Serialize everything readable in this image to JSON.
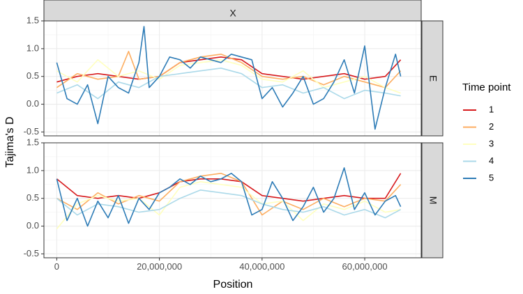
{
  "chart_data": {
    "type": "line",
    "xlabel": "Position",
    "ylabel": "Tajima's D",
    "xlim": [
      -2500000,
      71000000
    ],
    "ylim": [
      -0.57,
      1.5
    ],
    "x_ticks": [
      0,
      20000000,
      40000000,
      60000000
    ],
    "x_tick_labels": [
      "0",
      "20,000,000",
      "40,000,000",
      "60,000,000"
    ],
    "y_ticks": [
      -0.5,
      0.0,
      0.5,
      1.0,
      1.5
    ],
    "y_tick_labels": [
      "-0.5",
      "0.0",
      "0.5",
      "1.0",
      "1.5"
    ],
    "grid": true,
    "legend_position": "right",
    "facet_col_label": "X",
    "legend": {
      "title": "Time point",
      "entries": [
        {
          "label": "1",
          "color": "#d7191c"
        },
        {
          "label": "2",
          "color": "#fdae61"
        },
        {
          "label": "3",
          "color": "#ffffbf"
        },
        {
          "label": "4",
          "color": "#abd9e9"
        },
        {
          "label": "5",
          "color": "#2c7bb6"
        }
      ]
    },
    "panels": [
      {
        "label": "E",
        "series": [
          {
            "name": "1",
            "color": "#d7191c",
            "x": [
              0,
              4000000,
              8000000,
              12000000,
              16000000,
              20000000,
              24000000,
              28000000,
              32000000,
              36000000,
              40000000,
              44000000,
              48000000,
              52000000,
              56000000,
              60000000,
              64000000,
              67000000
            ],
            "y": [
              0.4,
              0.5,
              0.55,
              0.5,
              0.45,
              0.5,
              0.75,
              0.8,
              0.85,
              0.8,
              0.55,
              0.5,
              0.45,
              0.5,
              0.55,
              0.45,
              0.5,
              0.8
            ]
          },
          {
            "name": "2",
            "color": "#fdae61",
            "x": [
              0,
              4000000,
              8000000,
              12000000,
              14000000,
              16000000,
              20000000,
              24000000,
              28000000,
              32000000,
              36000000,
              40000000,
              44000000,
              48000000,
              52000000,
              56000000,
              60000000,
              64000000,
              67000000
            ],
            "y": [
              0.3,
              0.55,
              0.45,
              0.5,
              0.95,
              0.45,
              0.5,
              0.75,
              0.85,
              0.9,
              0.75,
              0.5,
              0.45,
              0.5,
              0.35,
              0.5,
              0.4,
              0.3,
              0.6
            ]
          },
          {
            "name": "3",
            "color": "#ffffbf",
            "x": [
              0,
              4000000,
              8000000,
              12000000,
              16000000,
              20000000,
              24000000,
              28000000,
              32000000,
              36000000,
              40000000,
              44000000,
              48000000,
              52000000,
              56000000,
              60000000,
              64000000,
              67000000
            ],
            "y": [
              0.6,
              0.4,
              0.8,
              0.5,
              0.6,
              0.45,
              0.7,
              0.75,
              0.8,
              0.7,
              0.45,
              0.4,
              0.6,
              0.3,
              0.4,
              0.5,
              0.3,
              0.2
            ]
          },
          {
            "name": "4",
            "color": "#abd9e9",
            "x": [
              0,
              4000000,
              8000000,
              12000000,
              16000000,
              20000000,
              24000000,
              28000000,
              32000000,
              36000000,
              40000000,
              44000000,
              48000000,
              52000000,
              56000000,
              60000000,
              64000000,
              67000000
            ],
            "y": [
              0.2,
              0.35,
              0.1,
              0.4,
              0.3,
              0.5,
              0.55,
              0.6,
              0.65,
              0.55,
              0.3,
              0.35,
              0.2,
              0.3,
              0.1,
              0.25,
              0.2,
              0.15
            ]
          },
          {
            "name": "5",
            "color": "#2c7bb6",
            "x": [
              0,
              2000000,
              4000000,
              6000000,
              8000000,
              10000000,
              12000000,
              14000000,
              16000000,
              17000000,
              18000000,
              20000000,
              22000000,
              24000000,
              26000000,
              28000000,
              30000000,
              32000000,
              34000000,
              36000000,
              38000000,
              40000000,
              42000000,
              44000000,
              46000000,
              48000000,
              50000000,
              52000000,
              54000000,
              56000000,
              58000000,
              60000000,
              62000000,
              64000000,
              66000000,
              67000000
            ],
            "y": [
              0.75,
              0.1,
              0.0,
              0.35,
              -0.35,
              0.5,
              0.3,
              0.2,
              0.75,
              1.4,
              0.3,
              0.5,
              0.85,
              0.8,
              0.65,
              0.85,
              0.8,
              0.75,
              0.9,
              0.85,
              0.8,
              0.1,
              0.3,
              -0.05,
              0.2,
              0.5,
              0.0,
              0.1,
              0.4,
              0.8,
              0.2,
              1.05,
              -0.45,
              0.3,
              0.9,
              0.5
            ]
          }
        ]
      },
      {
        "label": "M",
        "series": [
          {
            "name": "1",
            "color": "#d7191c",
            "x": [
              0,
              4000000,
              8000000,
              12000000,
              16000000,
              20000000,
              24000000,
              28000000,
              32000000,
              36000000,
              40000000,
              44000000,
              48000000,
              52000000,
              56000000,
              60000000,
              64000000,
              67000000
            ],
            "y": [
              0.85,
              0.55,
              0.5,
              0.55,
              0.5,
              0.6,
              0.8,
              0.85,
              0.85,
              0.8,
              0.55,
              0.5,
              0.45,
              0.5,
              0.55,
              0.5,
              0.5,
              0.95
            ]
          },
          {
            "name": "2",
            "color": "#fdae61",
            "x": [
              0,
              4000000,
              8000000,
              12000000,
              16000000,
              20000000,
              24000000,
              28000000,
              32000000,
              36000000,
              40000000,
              44000000,
              48000000,
              52000000,
              56000000,
              60000000,
              64000000,
              67000000
            ],
            "y": [
              0.5,
              0.3,
              0.6,
              0.4,
              0.55,
              0.45,
              0.8,
              0.9,
              0.95,
              0.8,
              0.2,
              0.45,
              0.3,
              0.5,
              0.35,
              0.5,
              0.45,
              0.75
            ]
          },
          {
            "name": "3",
            "color": "#ffffbf",
            "x": [
              0,
              4000000,
              8000000,
              12000000,
              16000000,
              20000000,
              24000000,
              28000000,
              32000000,
              36000000,
              40000000,
              44000000,
              48000000,
              52000000,
              56000000,
              60000000,
              64000000,
              67000000
            ],
            "y": [
              -0.05,
              0.4,
              0.55,
              0.45,
              0.5,
              0.2,
              0.7,
              0.8,
              0.75,
              0.7,
              0.4,
              0.45,
              0.1,
              0.4,
              0.3,
              0.45,
              0.25,
              0.3
            ]
          },
          {
            "name": "4",
            "color": "#abd9e9",
            "x": [
              0,
              4000000,
              8000000,
              12000000,
              16000000,
              20000000,
              24000000,
              28000000,
              32000000,
              36000000,
              40000000,
              44000000,
              48000000,
              52000000,
              56000000,
              60000000,
              64000000,
              67000000
            ],
            "y": [
              0.5,
              0.2,
              0.4,
              0.35,
              0.25,
              0.3,
              0.5,
              0.65,
              0.6,
              0.55,
              0.4,
              0.3,
              0.25,
              0.35,
              0.2,
              0.3,
              0.15,
              0.3
            ]
          },
          {
            "name": "5",
            "color": "#2c7bb6",
            "x": [
              0,
              2000000,
              4000000,
              6000000,
              8000000,
              10000000,
              12000000,
              14000000,
              16000000,
              18000000,
              20000000,
              22000000,
              24000000,
              26000000,
              28000000,
              30000000,
              32000000,
              34000000,
              36000000,
              38000000,
              40000000,
              42000000,
              44000000,
              46000000,
              48000000,
              50000000,
              52000000,
              54000000,
              56000000,
              58000000,
              60000000,
              62000000,
              64000000,
              66000000,
              67000000
            ],
            "y": [
              0.85,
              0.1,
              0.5,
              0.0,
              0.45,
              0.15,
              0.55,
              0.05,
              0.5,
              0.3,
              0.6,
              0.7,
              0.85,
              0.75,
              0.9,
              0.8,
              0.85,
              0.95,
              0.8,
              0.2,
              0.3,
              0.8,
              0.5,
              0.1,
              0.35,
              0.7,
              0.25,
              0.5,
              1.05,
              0.3,
              0.6,
              0.2,
              0.45,
              0.55,
              0.35
            ]
          }
        ]
      }
    ]
  }
}
